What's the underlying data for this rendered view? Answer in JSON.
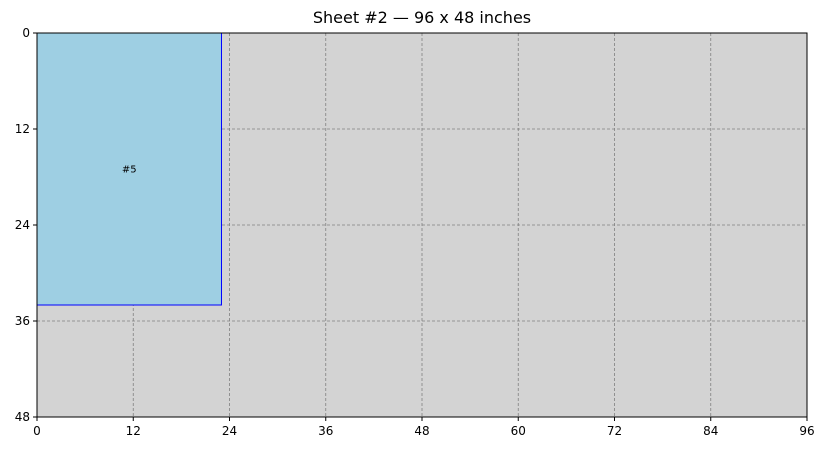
{
  "chart_data": {
    "type": "table",
    "title": "Sheet #2 — 96 x 48 inches",
    "xlabel": "",
    "ylabel": "",
    "xlim": [
      0,
      96
    ],
    "ylim": [
      0,
      48
    ],
    "y_inverted": true,
    "x_ticks": [
      "0",
      "12",
      "24",
      "36",
      "48",
      "60",
      "72",
      "84",
      "96"
    ],
    "y_ticks": [
      "0",
      "12",
      "24",
      "36",
      "48"
    ],
    "grid": true,
    "sheet_color": "#d3d3d3",
    "pieces": [
      {
        "label": "#5",
        "x": 0,
        "y": 0,
        "width": 23,
        "height": 34,
        "fill": "#9ecfe3",
        "edge": "#0000ff"
      }
    ]
  }
}
